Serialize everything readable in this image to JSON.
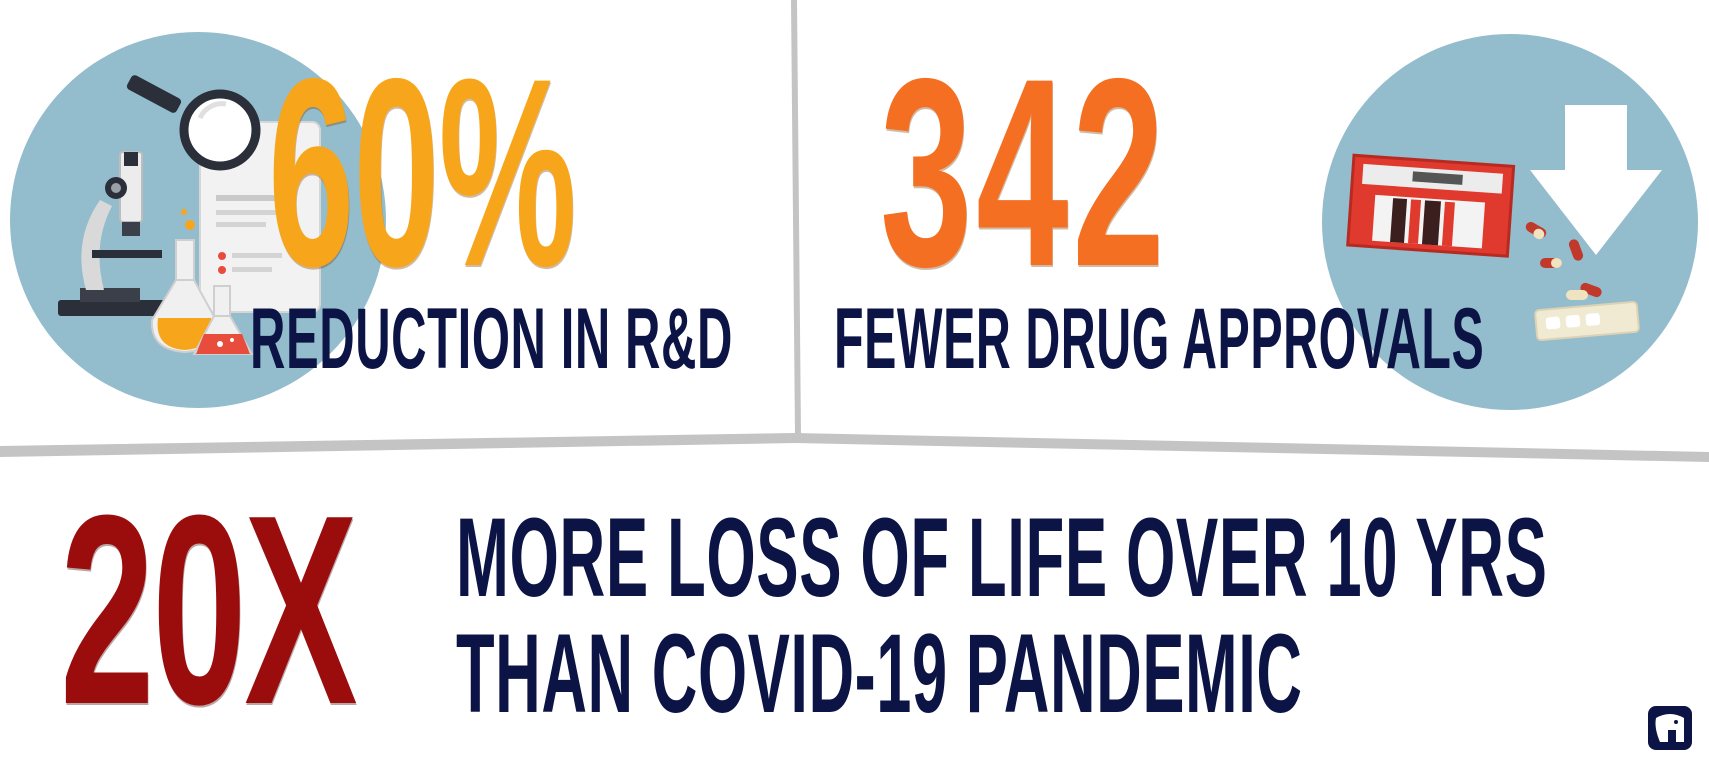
{
  "colors": {
    "stat_orange_light": "#f7a61b",
    "stat_orange": "#f46f21",
    "stat_red": "#9b0d0d",
    "navy": "#0c1446",
    "circle_blue": "#93bccd",
    "divider_gray": "#c4c4c4"
  },
  "panels": {
    "rnd": {
      "stat": "60%",
      "caption": "REDUCTION IN R&D",
      "icon": "laboratory-microscope-flasks-icon"
    },
    "approvals": {
      "stat": "342",
      "caption": "FEWER DRUG APPROVALS",
      "icon": "pill-pack-down-arrow-icon"
    },
    "loss": {
      "stat": "20X",
      "line1": "MORE LOSS OF LIFE OVER 10 YRS",
      "line2": "THAN COVID-19 PANDEMIC"
    }
  },
  "logo": "elephant-logo-icon"
}
